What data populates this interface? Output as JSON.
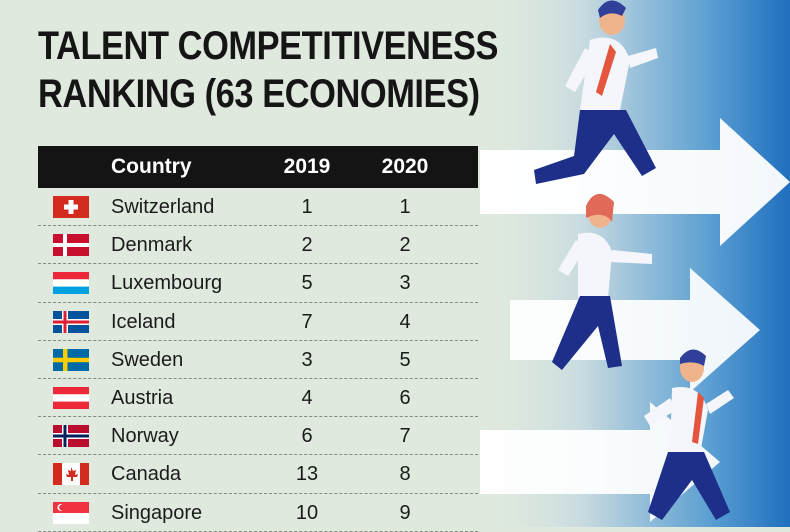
{
  "chart_data": {
    "type": "table",
    "title_line1": "TALENT COMPETITIVENESS",
    "title_line2": "RANKING (63 ECONOMIES)",
    "columns": [
      "Country",
      "2019",
      "2020"
    ],
    "rows": [
      {
        "country": "Switzerland",
        "flag": "flag-switzerland-icon",
        "y2019": "1",
        "y2020": "1"
      },
      {
        "country": "Denmark",
        "flag": "flag-denmark-icon",
        "y2019": "2",
        "y2020": "2"
      },
      {
        "country": "Luxembourg",
        "flag": "flag-luxembourg-icon",
        "y2019": "5",
        "y2020": "3"
      },
      {
        "country": "Iceland",
        "flag": "flag-iceland-icon",
        "y2019": "7",
        "y2020": "4"
      },
      {
        "country": "Sweden",
        "flag": "flag-sweden-icon",
        "y2019": "3",
        "y2020": "5"
      },
      {
        "country": "Austria",
        "flag": "flag-austria-icon",
        "y2019": "4",
        "y2020": "6"
      },
      {
        "country": "Norway",
        "flag": "flag-norway-icon",
        "y2019": "6",
        "y2020": "7"
      },
      {
        "country": "Canada",
        "flag": "flag-canada-icon",
        "y2019": "13",
        "y2020": "8"
      },
      {
        "country": "Singapore",
        "flag": "flag-singapore-icon",
        "y2019": "10",
        "y2020": "9"
      }
    ]
  },
  "colors": {
    "background": "#dfe9de",
    "header_bg": "#141414",
    "accent_blue": "#1f6fbf",
    "runner_navy": "#1e2f8a"
  }
}
